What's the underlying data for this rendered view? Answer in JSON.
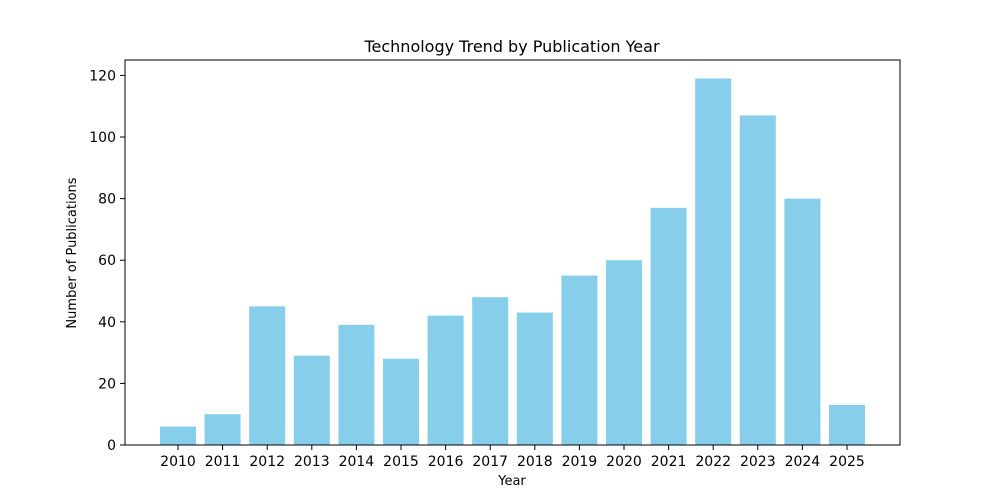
{
  "chart_data": {
    "type": "bar",
    "title": "Technology Trend by Publication Year",
    "xlabel": "Year",
    "ylabel": "Number of Publications",
    "categories": [
      "2010",
      "2011",
      "2012",
      "2013",
      "2014",
      "2015",
      "2016",
      "2017",
      "2018",
      "2019",
      "2020",
      "2021",
      "2022",
      "2023",
      "2024",
      "2025"
    ],
    "values": [
      6,
      10,
      45,
      29,
      39,
      28,
      42,
      48,
      43,
      55,
      60,
      77,
      119,
      107,
      80,
      13
    ],
    "ylim": [
      0,
      125
    ],
    "yticks": [
      0,
      20,
      40,
      60,
      80,
      100,
      120
    ],
    "grid": false,
    "legend": "none",
    "bar_color": "#87ceeb"
  }
}
